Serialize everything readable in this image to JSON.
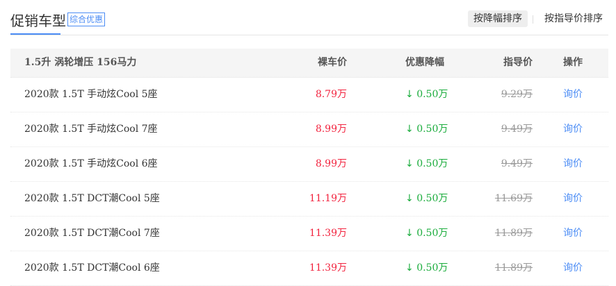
{
  "header": {
    "title": "促销车型",
    "tag": "综合优惠",
    "sort_by_discount": "按降幅排序",
    "sort_by_guide": "按指导价排序"
  },
  "table": {
    "group": "1.5升 涡轮增压 156马力",
    "columns": {
      "price": "裸车价",
      "discount": "优惠降幅",
      "guide": "指导价",
      "action": "操作"
    },
    "rows": [
      {
        "name": "2020款 1.5T 手动炫Cool 5座",
        "price": "8.79万",
        "discount": "0.50万",
        "guide": "9.29万",
        "action": "询价"
      },
      {
        "name": "2020款 1.5T 手动炫Cool 7座",
        "price": "8.99万",
        "discount": "0.50万",
        "guide": "9.49万",
        "action": "询价"
      },
      {
        "name": "2020款 1.5T 手动炫Cool 6座",
        "price": "8.99万",
        "discount": "0.50万",
        "guide": "9.49万",
        "action": "询价"
      },
      {
        "name": "2020款 1.5T DCT潮Cool 5座",
        "price": "11.19万",
        "discount": "0.50万",
        "guide": "11.69万",
        "action": "询价"
      },
      {
        "name": "2020款 1.5T DCT潮Cool 7座",
        "price": "11.39万",
        "discount": "0.50万",
        "guide": "11.89万",
        "action": "询价"
      },
      {
        "name": "2020款 1.5T DCT潮Cool 6座",
        "price": "11.39万",
        "discount": "0.50万",
        "guide": "11.89万",
        "action": "询价"
      }
    ]
  },
  "colors": {
    "accent": "#4b8cf5",
    "price": "#f2243f",
    "discount": "#1aac3c"
  }
}
